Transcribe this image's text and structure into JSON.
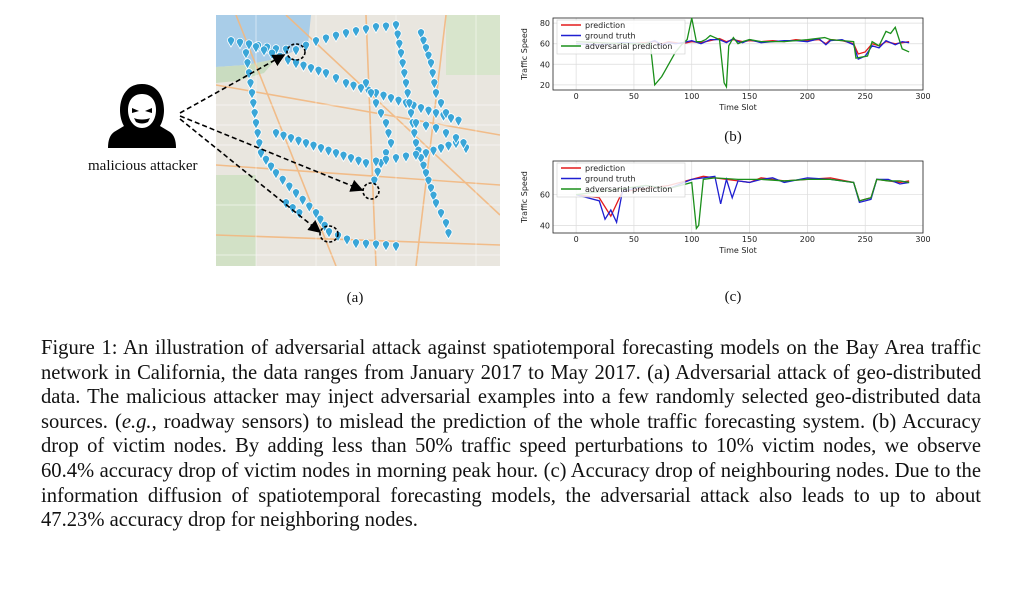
{
  "attacker": {
    "label": "malicious attacker"
  },
  "panels": {
    "a": "(a)",
    "b": "(b)",
    "c": "(c)"
  },
  "legend": {
    "prediction": "prediction",
    "ground_truth": "ground truth",
    "adversarial": "adversarial prediction"
  },
  "colors": {
    "prediction": "#e41a1c",
    "ground_truth": "#1f1fd1",
    "adversarial": "#1a8f1a",
    "pin": "#3aa6d8"
  },
  "chart_data": [
    {
      "type": "line",
      "xlabel": "Time Slot",
      "ylabel": "Traffic Speed",
      "xlim": [
        -20,
        300
      ],
      "ylim": [
        15,
        85
      ],
      "xticks": [
        0,
        50,
        100,
        150,
        200,
        250,
        300
      ],
      "yticks": [
        20,
        40,
        60,
        80
      ],
      "legend_position": "top-left",
      "series": [
        {
          "name": "prediction",
          "x": [
            0,
            20,
            40,
            60,
            68,
            74,
            80,
            86,
            92,
            100,
            108,
            116,
            124,
            130,
            136,
            140,
            144,
            150,
            160,
            170,
            180,
            190,
            200,
            210,
            216,
            220,
            230,
            240,
            244,
            250,
            256,
            262,
            268,
            276,
            282,
            288
          ],
          "y": [
            62,
            61,
            60,
            61,
            62,
            60,
            62,
            61,
            60,
            62,
            61,
            63,
            65,
            62,
            64,
            63,
            62,
            63,
            62,
            63,
            62,
            64,
            63,
            64,
            60,
            64,
            63,
            60,
            50,
            52,
            60,
            58,
            62,
            60,
            61,
            62
          ]
        },
        {
          "name": "ground truth",
          "x": [
            0,
            20,
            40,
            60,
            68,
            74,
            80,
            86,
            92,
            100,
            108,
            116,
            124,
            130,
            136,
            140,
            144,
            150,
            160,
            170,
            180,
            190,
            200,
            210,
            216,
            220,
            230,
            240,
            244,
            250,
            256,
            262,
            268,
            276,
            282,
            288
          ],
          "y": [
            60,
            59,
            61,
            60,
            63,
            59,
            61,
            60,
            61,
            63,
            60,
            64,
            64,
            61,
            65,
            62,
            61,
            64,
            61,
            62,
            63,
            63,
            62,
            65,
            59,
            63,
            64,
            59,
            45,
            48,
            58,
            56,
            63,
            59,
            62,
            61
          ]
        },
        {
          "name": "adversarial prediction",
          "x": [
            0,
            40,
            60,
            64,
            68,
            74,
            76,
            80,
            86,
            92,
            96,
            100,
            104,
            108,
            112,
            116,
            120,
            124,
            128,
            130,
            132,
            136,
            140,
            144,
            150,
            160,
            180,
            200,
            215,
            220,
            240,
            242,
            252,
            256,
            262,
            268,
            272,
            276,
            282,
            288
          ],
          "y": [
            62,
            60,
            60,
            61,
            20,
            28,
            32,
            40,
            52,
            60,
            64,
            85,
            62,
            62,
            64,
            68,
            66,
            64,
            22,
            18,
            58,
            66,
            60,
            62,
            64,
            62,
            62,
            64,
            66,
            64,
            62,
            46,
            48,
            62,
            58,
            72,
            70,
            76,
            55,
            52
          ]
        }
      ]
    },
    {
      "type": "line",
      "xlabel": "Time Slot",
      "ylabel": "Traffic Speed",
      "xlim": [
        -20,
        300
      ],
      "ylim": [
        35,
        82
      ],
      "xticks": [
        0,
        50,
        100,
        150,
        200,
        250,
        300
      ],
      "yticks": [
        40,
        60
      ],
      "legend_position": "top-left",
      "series": [
        {
          "name": "prediction",
          "x": [
            0,
            20,
            30,
            40,
            60,
            80,
            100,
            110,
            120,
            130,
            140,
            150,
            160,
            170,
            180,
            200,
            220,
            240,
            245,
            250,
            255,
            260,
            270,
            280,
            288
          ],
          "y": [
            60,
            58,
            46,
            62,
            64,
            66,
            70,
            72,
            71,
            70,
            69,
            68,
            71,
            70,
            69,
            70,
            71,
            68,
            56,
            57,
            58,
            70,
            69,
            68,
            69
          ]
        },
        {
          "name": "ground truth",
          "x": [
            0,
            20,
            25,
            30,
            35,
            40,
            60,
            80,
            100,
            110,
            120,
            125,
            130,
            135,
            140,
            150,
            160,
            170,
            180,
            200,
            220,
            240,
            245,
            250,
            255,
            260,
            270,
            280,
            288
          ],
          "y": [
            60,
            56,
            44,
            50,
            42,
            62,
            66,
            64,
            70,
            71,
            72,
            54,
            70,
            58,
            69,
            68,
            70,
            71,
            68,
            71,
            70,
            68,
            55,
            56,
            57,
            70,
            70,
            67,
            68
          ]
        },
        {
          "name": "adversarial prediction",
          "x": [
            0,
            20,
            40,
            60,
            80,
            100,
            104,
            106,
            110,
            120,
            140,
            160,
            180,
            200,
            220,
            240,
            245,
            250,
            255,
            260,
            270,
            280,
            288
          ],
          "y": [
            60,
            62,
            64,
            66,
            64,
            68,
            38,
            40,
            70,
            71,
            70,
            70,
            69,
            70,
            70,
            68,
            56,
            57,
            58,
            70,
            69,
            69,
            68
          ]
        }
      ]
    }
  ],
  "caption": {
    "label": "Figure 1:",
    "text_1": " An illustration of adversarial attack against spatiotemporal forecasting models on the Bay Area traffic network in California, the data ranges from January 2017 to May 2017. (a) Adversarial attack of geo-distributed data. The malicious attacker may inject adversarial examples into a few randomly selected geo-distributed data sources. (",
    "eg": "e.g.",
    "text_2": ", roadway sensors) to mislead the prediction of the whole traffic forecasting system. (b) Accuracy drop of victim nodes. By adding less than 50% traffic speed perturbations to 10% victim nodes, we observe 60.4% accuracy drop of victim nodes in morning peak hour. (c) Accuracy drop of neighbouring nodes. Due to the information diffusion of spatiotemporal forecasting models, the adversarial attack also leads to up to about 47.23% accuracy drop for neighboring nodes."
  }
}
